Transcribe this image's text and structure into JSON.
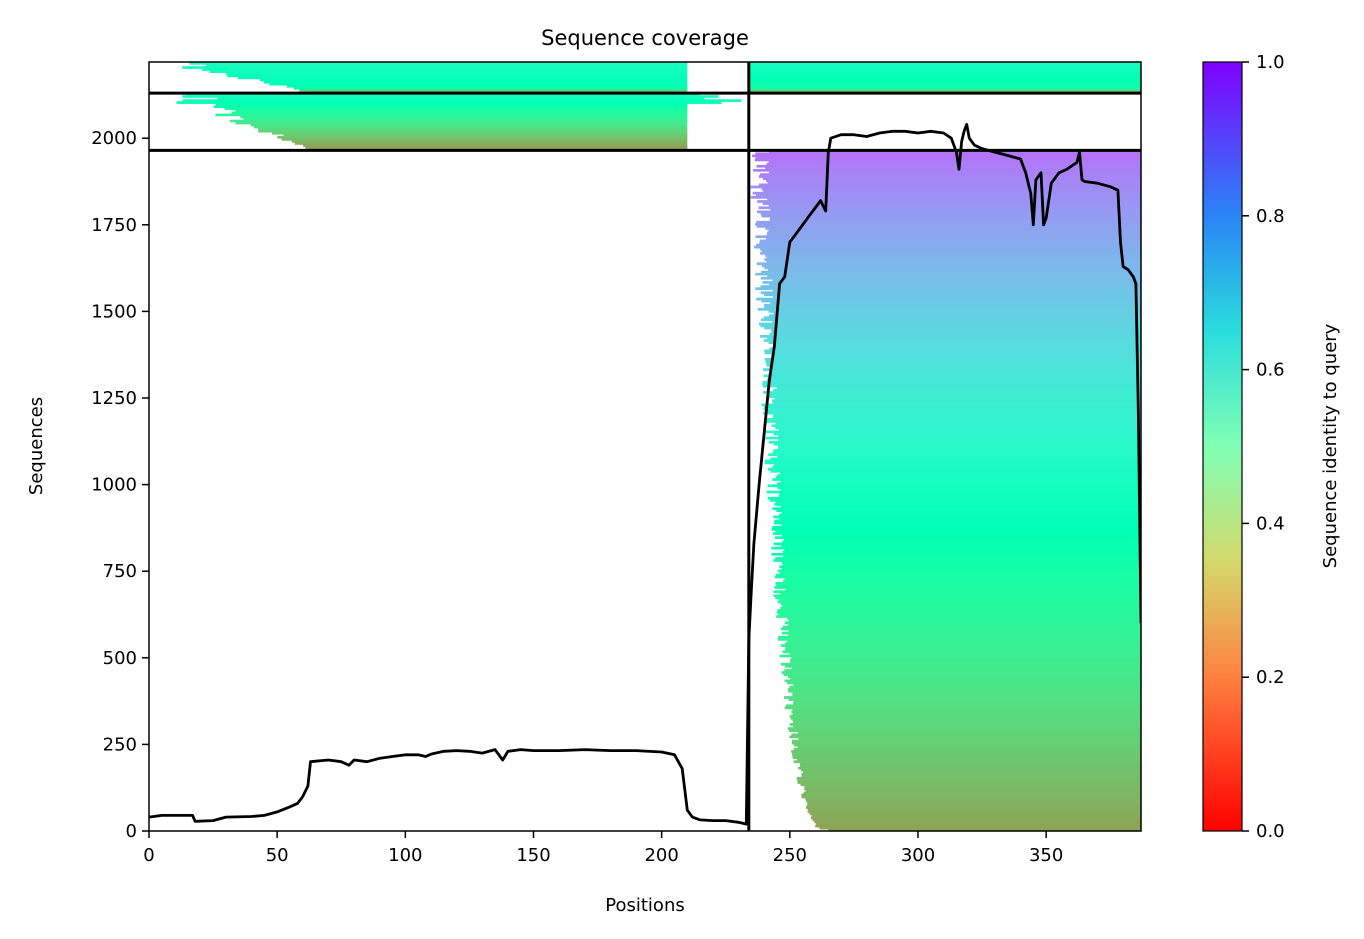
{
  "chart_data": {
    "type": "heatmap",
    "title": "Sequence coverage",
    "xlabel": "Positions",
    "ylabel": "Sequences",
    "xlim": [
      0,
      387
    ],
    "ylim": [
      0,
      2220
    ],
    "x_ticks": [
      0,
      50,
      100,
      150,
      200,
      250,
      300,
      350
    ],
    "y_ticks": [
      0,
      250,
      500,
      750,
      1000,
      1250,
      1500,
      1750,
      2000
    ],
    "colorbar": {
      "label": "Sequence identity to query",
      "colormap": "rainbow_r",
      "range": [
        0,
        1
      ],
      "ticks": [
        "0.0",
        "0.2",
        "0.4",
        "0.6",
        "0.8",
        "1.0"
      ]
    },
    "segment_boundary_x": 234,
    "horizontal_boundaries_y": [
      1965,
      2130
    ],
    "blocks": [
      {
        "x0": 0,
        "x1": 210,
        "y0": 2130,
        "y1": 2220,
        "core_x0": 63,
        "core_x1": 210,
        "identity_top": 0.55,
        "identity_bottom": 0.48,
        "bottom_band_identity": 0.3
      },
      {
        "x0": 0,
        "x1": 234,
        "y0": 1965,
        "y1": 2130,
        "core_x0": 63,
        "core_x1": 210,
        "identity_top": 0.55,
        "identity_bottom": 0.2
      },
      {
        "x0": 234,
        "x1": 387,
        "y0": 2130,
        "y1": 2220,
        "core_x0": 234,
        "core_x1": 387,
        "identity_top": 0.55,
        "identity_bottom": 0.45,
        "bottom_band_identity": 0.3
      },
      {
        "x0": 234,
        "x1": 387,
        "y0": 0,
        "y1": 1965,
        "core_x0": 265,
        "core_x1": 387,
        "identity_top": 0.85,
        "identity_bottom": 0.22
      }
    ],
    "coverage_line": {
      "x": [
        0,
        5,
        10,
        17,
        18,
        25,
        30,
        40,
        45,
        50,
        55,
        58,
        60,
        62,
        63,
        70,
        75,
        78,
        80,
        85,
        90,
        95,
        100,
        105,
        108,
        110,
        115,
        120,
        125,
        130,
        135,
        138,
        140,
        145,
        150,
        160,
        170,
        180,
        190,
        200,
        205,
        208,
        210,
        212,
        215,
        220,
        225,
        230,
        233,
        234,
        235,
        236,
        238,
        240,
        242,
        244,
        246,
        248,
        250,
        252,
        254,
        256,
        258,
        260,
        262,
        264,
        265,
        266,
        270,
        275,
        280,
        285,
        290,
        295,
        300,
        305,
        310,
        313,
        315,
        316,
        317,
        318,
        319,
        320,
        322,
        325,
        330,
        335,
        340,
        342,
        344,
        345,
        346,
        348,
        349,
        350,
        352,
        355,
        358,
        360,
        362,
        363,
        364,
        365,
        370,
        375,
        378,
        379,
        380,
        382,
        384,
        385,
        386,
        387
      ],
      "y": [
        40,
        45,
        45,
        45,
        28,
        30,
        40,
        42,
        45,
        55,
        70,
        80,
        100,
        130,
        200,
        205,
        200,
        190,
        205,
        200,
        210,
        215,
        220,
        220,
        215,
        222,
        230,
        232,
        230,
        225,
        235,
        205,
        230,
        235,
        232,
        232,
        235,
        232,
        232,
        228,
        220,
        180,
        60,
        40,
        32,
        30,
        30,
        25,
        20,
        550,
        700,
        830,
        1000,
        1150,
        1300,
        1400,
        1580,
        1600,
        1700,
        1720,
        1740,
        1760,
        1780,
        1800,
        1820,
        1790,
        1960,
        2000,
        2010,
        2010,
        2005,
        2015,
        2020,
        2020,
        2015,
        2020,
        2015,
        2000,
        1960,
        1910,
        1990,
        2020,
        2040,
        2000,
        1980,
        1970,
        1960,
        1950,
        1940,
        1900,
        1840,
        1750,
        1880,
        1900,
        1750,
        1770,
        1870,
        1900,
        1910,
        1920,
        1930,
        1960,
        1880,
        1875,
        1870,
        1860,
        1850,
        1700,
        1630,
        1620,
        1600,
        1580,
        1200,
        600
      ]
    }
  }
}
